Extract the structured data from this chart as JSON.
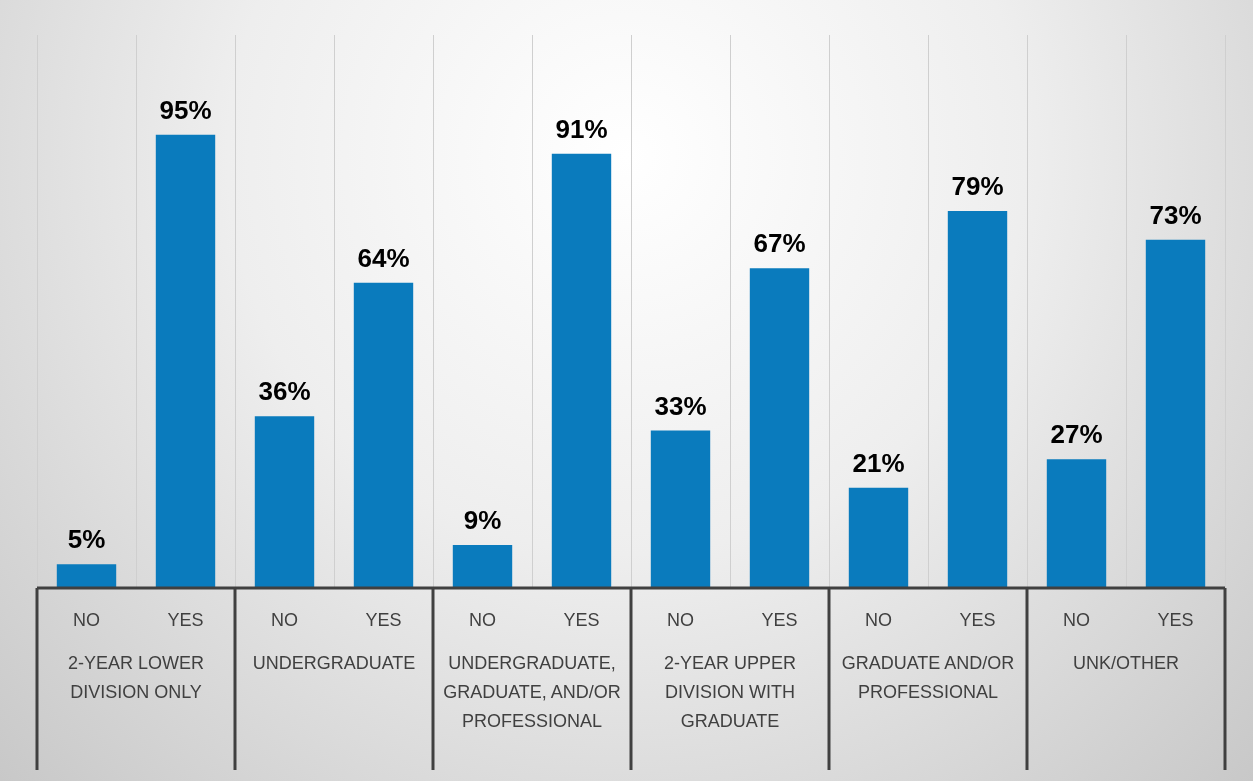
{
  "chart_data": {
    "type": "bar",
    "categories": [
      "NO",
      "YES",
      "NO",
      "YES",
      "NO",
      "YES",
      "NO",
      "YES",
      "NO",
      "YES",
      "NO",
      "YES"
    ],
    "values": [
      5,
      95,
      36,
      64,
      9,
      91,
      33,
      67,
      21,
      79,
      27,
      73
    ],
    "value_labels": [
      "5%",
      "95%",
      "36%",
      "64%",
      "9%",
      "91%",
      "33%",
      "67%",
      "21%",
      "79%",
      "27%",
      "73%"
    ],
    "color": "#0a7bbd",
    "annotations": [
      "2-YEAR LOWER DIVISION ONLY",
      "UNDERGRADUATE",
      "UNDERGRADUATE, GRADUATE, AND/OR PROFESSIONAL",
      "2-YEAR UPPER DIVISION WITH GRADUATE",
      "GRADUATE AND/OR PROFESSIONAL",
      "UNK/OTHER"
    ],
    "grid": "x",
    "legend": false
  }
}
